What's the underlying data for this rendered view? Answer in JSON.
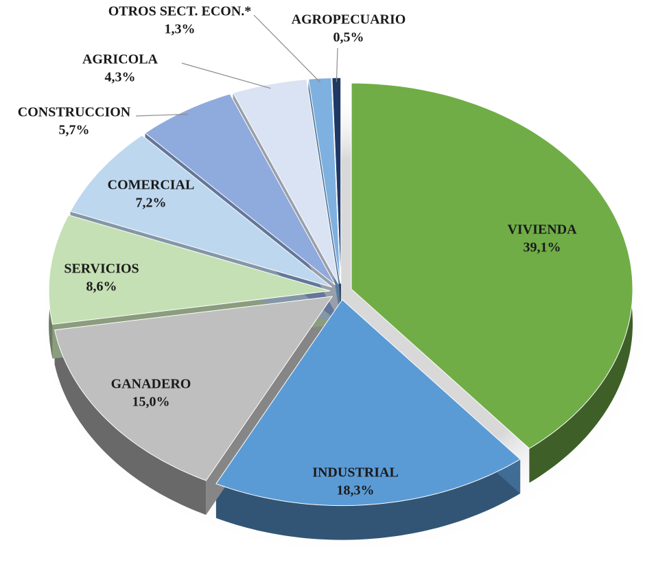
{
  "chart_data": {
    "type": "pie",
    "categories": [
      "VIVIENDA",
      "INDUSTRIAL",
      "GANADERO",
      "SERVICIOS",
      "COMERCIAL",
      "CONSTRUCCION",
      "AGRICOLA",
      "OTROS SECT. ECON.*",
      "AGROPECUARIO"
    ],
    "values": [
      39.1,
      18.3,
      15.0,
      8.6,
      7.2,
      5.7,
      4.3,
      1.3,
      0.5
    ],
    "value_labels": [
      "39,1%",
      "18,3%",
      "15,0%",
      "8,6%",
      "7,2%",
      "5,7%",
      "4,3%",
      "1,3%",
      "0,5%"
    ],
    "colors": [
      "#70ad47",
      "#5b9bd5",
      "#bfbfbf",
      "#c5e0b4",
      "#bdd7ee",
      "#8faadc",
      "#dae3f3",
      "#7eb0e0",
      "#1f3864"
    ]
  }
}
